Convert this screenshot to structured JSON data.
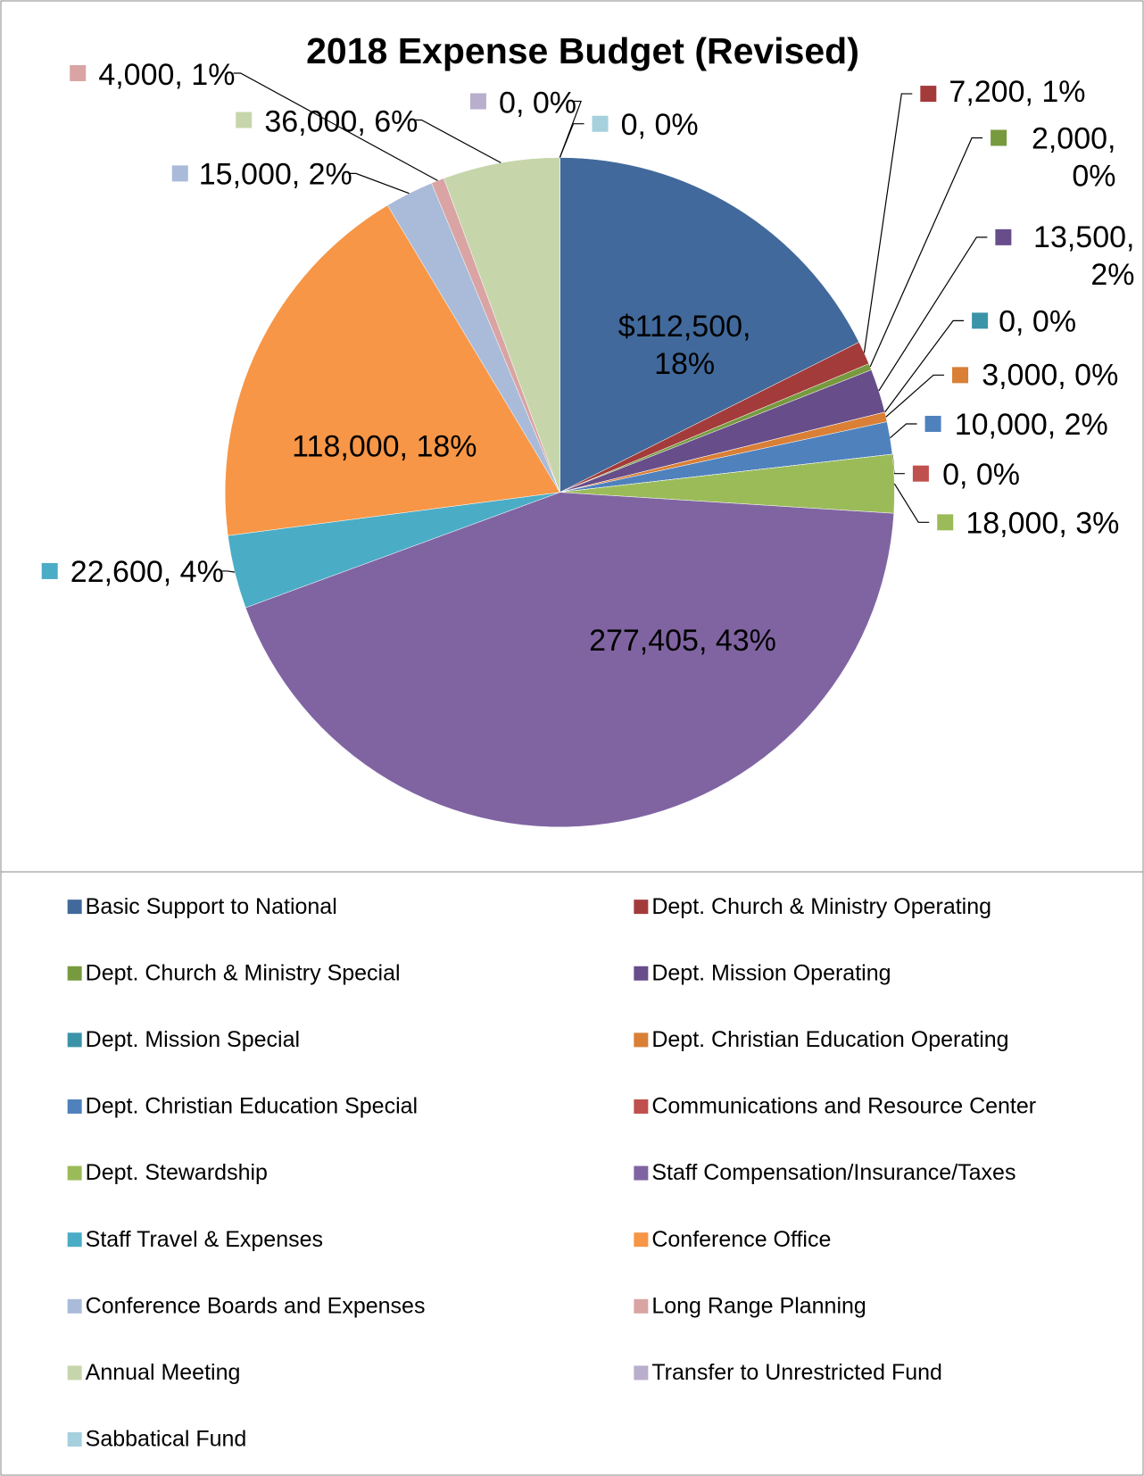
{
  "chart_data": {
    "type": "pie",
    "title": "2018 Expense Budget (Revised)",
    "categories": [
      "Basic Support to National",
      "Dept. Church & Ministry Operating",
      "Dept. Church & Ministry Special",
      "Dept. Mission Operating",
      "Dept. Mission Special",
      "Dept. Christian Education Operating",
      "Dept. Christian Education Special",
      "Communications and Resource Center",
      "Dept. Stewardship",
      "Staff Compensation/Insurance/Taxes",
      "Staff Travel & Expenses",
      "Conference Office",
      "Conference Boards and Expenses",
      "Long Range Planning",
      "Annual Meeting",
      "Transfer to Unrestricted Fund",
      "Sabbatical Fund"
    ],
    "values": [
      112500,
      7200,
      2000,
      13500,
      0,
      3000,
      10000,
      0,
      18000,
      277405,
      22600,
      118000,
      15000,
      4000,
      36000,
      0,
      0
    ],
    "value_labels": [
      "$112,500, 18%",
      "7,200, 1%",
      "2,000, 0%",
      "13,500, 2%",
      "0, 0%",
      "3,000, 0%",
      "10,000, 2%",
      "0, 0%",
      "18,000, 3%",
      "277,405, 43%",
      "22,600, 4%",
      "118,000, 18%",
      "15,000, 2%",
      "4,000, 1%",
      "36,000, 6%",
      "0, 0%",
      "0, 0%"
    ],
    "colors": [
      "#41699b",
      "#a33b3a",
      "#779a3f",
      "#674d89",
      "#3b93a8",
      "#d97f36",
      "#4f81bd",
      "#c0504d",
      "#9bbb59",
      "#8064a2",
      "#4bacc6",
      "#f79646",
      "#a9bbd9",
      "#d9a4a3",
      "#c6d6aa",
      "#b9aecc",
      "#a6d0dd"
    ],
    "legend": "bottom"
  }
}
